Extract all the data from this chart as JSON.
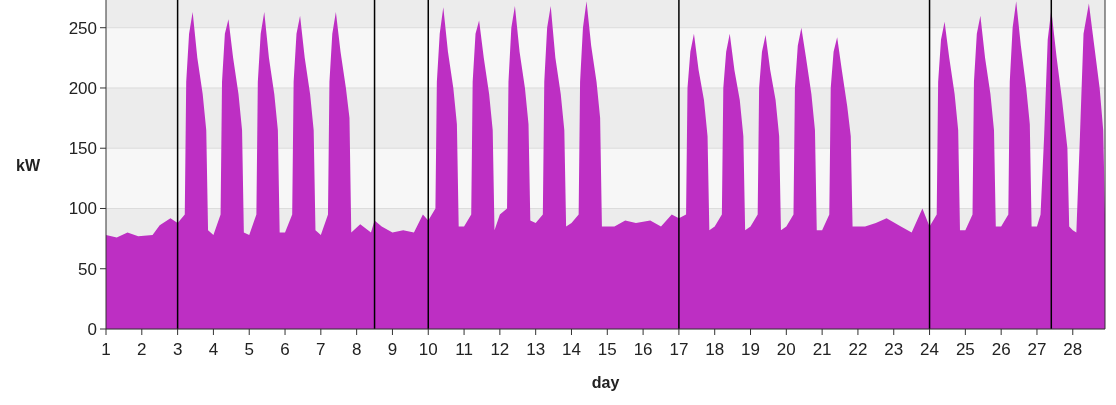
{
  "chart_data": {
    "type": "area",
    "xlabel": "day",
    "ylabel": "kW",
    "xlim": [
      1,
      28.9
    ],
    "ylim": [
      0,
      273
    ],
    "xticks": [
      1,
      2,
      3,
      4,
      5,
      6,
      7,
      8,
      9,
      10,
      11,
      12,
      13,
      14,
      15,
      16,
      17,
      18,
      19,
      20,
      21,
      22,
      23,
      24,
      25,
      26,
      27,
      28
    ],
    "yticks": [
      0,
      50,
      100,
      150,
      200,
      250
    ],
    "grid": "y",
    "ref_lines": [
      {
        "axis": "x",
        "value": 3,
        "color": "#000000"
      },
      {
        "axis": "x",
        "value": 8.5,
        "color": "#000000"
      },
      {
        "axis": "x",
        "value": 10,
        "color": "#000000"
      },
      {
        "axis": "x",
        "value": 17,
        "color": "#000000"
      },
      {
        "axis": "x",
        "value": 24,
        "color": "#000000"
      },
      {
        "axis": "x",
        "value": 27.4,
        "color": "#000000"
      }
    ],
    "series": [
      {
        "color": "#bd2fc3",
        "x": [
          1,
          1.3,
          1.6,
          1.9,
          2.3,
          2.5,
          2.8,
          3,
          3.2,
          3.24,
          3.32,
          3.42,
          3.55,
          3.7,
          3.8,
          3.85,
          4,
          4.2,
          4.24,
          4.32,
          4.42,
          4.55,
          4.7,
          4.8,
          4.85,
          5,
          5.2,
          5.24,
          5.32,
          5.42,
          5.55,
          5.7,
          5.8,
          5.85,
          6,
          6.2,
          6.24,
          6.32,
          6.42,
          6.55,
          6.7,
          6.8,
          6.85,
          7,
          7.2,
          7.24,
          7.32,
          7.42,
          7.55,
          7.7,
          7.8,
          7.85,
          8.1,
          8.4,
          8.5,
          8.7,
          9,
          9.3,
          9.6,
          9.85,
          10,
          10.2,
          10.24,
          10.32,
          10.42,
          10.55,
          10.7,
          10.8,
          10.85,
          11,
          11.2,
          11.24,
          11.32,
          11.42,
          11.55,
          11.7,
          11.8,
          11.85,
          12,
          12.2,
          12.24,
          12.32,
          12.42,
          12.55,
          12.7,
          12.8,
          12.85,
          13,
          13.2,
          13.24,
          13.32,
          13.42,
          13.55,
          13.7,
          13.8,
          13.85,
          14,
          14.2,
          14.24,
          14.32,
          14.42,
          14.55,
          14.7,
          14.8,
          14.85,
          15.2,
          15.5,
          15.8,
          16.2,
          16.5,
          16.8,
          17,
          17.2,
          17.24,
          17.32,
          17.42,
          17.55,
          17.7,
          17.8,
          17.85,
          18,
          18.2,
          18.24,
          18.32,
          18.42,
          18.55,
          18.7,
          18.8,
          18.85,
          19,
          19.2,
          19.24,
          19.32,
          19.42,
          19.55,
          19.7,
          19.8,
          19.85,
          20,
          20.2,
          20.24,
          20.32,
          20.42,
          20.55,
          20.7,
          20.8,
          20.85,
          21,
          21.2,
          21.24,
          21.32,
          21.42,
          21.55,
          21.7,
          21.8,
          21.85,
          22.2,
          22.5,
          22.8,
          23.2,
          23.5,
          23.8,
          24,
          24.2,
          24.24,
          24.32,
          24.42,
          24.55,
          24.7,
          24.8,
          24.85,
          25,
          25.2,
          25.24,
          25.32,
          25.42,
          25.55,
          25.7,
          25.8,
          25.85,
          26,
          26.2,
          26.24,
          26.32,
          26.42,
          26.55,
          26.7,
          26.8,
          26.85,
          27,
          27.1,
          27.2,
          27.3,
          27.4,
          27.55,
          27.7,
          27.85,
          27.9,
          28,
          28.1,
          28.2,
          28.3,
          28.45,
          28.6,
          28.75,
          28.85,
          28.9
        ],
        "values": [
          78,
          76,
          80,
          77,
          78,
          86,
          92,
          88,
          95,
          205,
          245,
          263,
          225,
          195,
          165,
          82,
          78,
          95,
          205,
          245,
          257,
          225,
          195,
          165,
          80,
          78,
          95,
          205,
          245,
          263,
          225,
          195,
          165,
          80,
          80,
          95,
          205,
          245,
          260,
          225,
          195,
          165,
          82,
          78,
          95,
          205,
          245,
          263,
          230,
          200,
          175,
          80,
          87,
          80,
          90,
          85,
          80,
          82,
          80,
          95,
          90,
          100,
          205,
          245,
          267,
          230,
          200,
          170,
          85,
          85,
          95,
          205,
          245,
          256,
          225,
          195,
          165,
          82,
          95,
          100,
          205,
          250,
          268,
          230,
          200,
          170,
          90,
          88,
          95,
          205,
          250,
          268,
          225,
          195,
          165,
          85,
          88,
          95,
          205,
          250,
          272,
          235,
          205,
          175,
          85,
          85,
          90,
          88,
          90,
          85,
          95,
          92,
          95,
          200,
          230,
          245,
          215,
          190,
          160,
          82,
          85,
          95,
          200,
          230,
          245,
          215,
          190,
          160,
          82,
          85,
          95,
          200,
          230,
          244,
          215,
          190,
          160,
          82,
          85,
          95,
          200,
          235,
          250,
          225,
          195,
          165,
          82,
          82,
          95,
          200,
          230,
          242,
          215,
          185,
          160,
          85,
          85,
          88,
          92,
          85,
          80,
          100,
          85,
          95,
          205,
          240,
          255,
          225,
          195,
          165,
          82,
          82,
          95,
          205,
          245,
          260,
          225,
          195,
          165,
          85,
          85,
          95,
          205,
          250,
          272,
          235,
          200,
          170,
          85,
          85,
          95,
          160,
          240,
          265,
          225,
          190,
          150,
          85,
          82,
          80,
          160,
          245,
          270,
          235,
          200,
          165,
          95
        ]
      }
    ]
  }
}
